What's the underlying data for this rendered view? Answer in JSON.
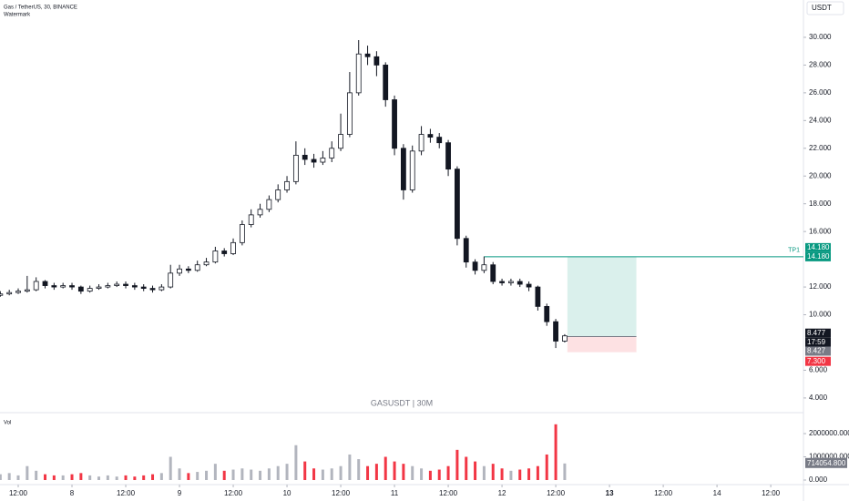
{
  "chart_data": {
    "type": "candlestick",
    "title": "Gas / TetherUS, 30, BINANCE",
    "subtitle": "Watermark",
    "watermark": "GASUSDT | 30M",
    "currency": "USDT",
    "volume_title": "Vol",
    "x": [
      8,
      10,
      12,
      14,
      16,
      18,
      20,
      22,
      24,
      26,
      28,
      30,
      32,
      34,
      36,
      38,
      40,
      42,
      44,
      46,
      48,
      50,
      52,
      54,
      56,
      58,
      60,
      62,
      64,
      66,
      68,
      70,
      72,
      74,
      76,
      78,
      80,
      82,
      84,
      86,
      88,
      90,
      92,
      94,
      96,
      98,
      100,
      102,
      104,
      106,
      108,
      110,
      112,
      114,
      116,
      118,
      120,
      122,
      124,
      126,
      128,
      130,
      132,
      134
    ],
    "open": [
      11.4,
      11.5,
      11.6,
      11.7,
      11.8,
      12.4,
      12.1,
      12.0,
      12.1,
      12.0,
      11.7,
      11.9,
      12.0,
      12.1,
      12.2,
      12.1,
      12.0,
      11.9,
      11.8,
      12.0,
      13.0,
      13.3,
      13.2,
      13.6,
      13.8,
      14.6,
      14.4,
      15.2,
      16.5,
      17.2,
      17.6,
      18.3,
      19.0,
      19.6,
      21.5,
      21.2,
      21.0,
      21.3,
      22.0,
      23.0,
      26.0,
      28.8,
      28.6,
      28.0,
      25.5,
      22.0,
      19.0,
      21.8,
      23.0,
      22.8,
      22.4,
      20.5,
      15.5,
      13.8,
      13.2,
      13.6,
      12.4,
      12.3,
      12.4,
      12.2,
      12.0,
      10.6,
      9.5,
      8.1
    ],
    "high": [
      11.7,
      11.8,
      11.9,
      12.8,
      12.7,
      12.5,
      12.3,
      12.3,
      12.3,
      12.1,
      12.1,
      12.2,
      12.3,
      12.4,
      12.4,
      12.3,
      12.2,
      12.1,
      12.2,
      13.6,
      13.6,
      13.5,
      13.9,
      14.1,
      14.9,
      14.8,
      15.5,
      16.8,
      17.6,
      18.0,
      18.6,
      19.4,
      20.0,
      22.5,
      22.0,
      21.6,
      21.8,
      22.5,
      24.5,
      27.5,
      29.8,
      29.4,
      29.0,
      28.2,
      25.8,
      22.3,
      22.2,
      23.6,
      23.4,
      23.1,
      22.6,
      20.7,
      15.7,
      14.0,
      14.2,
      13.8,
      12.6,
      12.6,
      12.6,
      12.4,
      12.1,
      10.8,
      9.7,
      8.6
    ],
    "low": [
      11.3,
      11.4,
      11.5,
      11.6,
      11.7,
      11.9,
      11.8,
      11.9,
      11.8,
      11.5,
      11.6,
      11.8,
      11.9,
      12.0,
      11.9,
      11.8,
      11.7,
      11.6,
      11.7,
      11.9,
      12.8,
      13.0,
      13.1,
      13.5,
      13.7,
      14.2,
      14.3,
      15.0,
      16.3,
      17.0,
      17.4,
      18.1,
      18.8,
      19.4,
      20.8,
      20.6,
      20.8,
      21.0,
      21.8,
      22.8,
      25.8,
      28.0,
      27.2,
      25.0,
      21.5,
      18.3,
      18.8,
      21.5,
      22.4,
      22.0,
      20.0,
      15.0,
      13.4,
      12.9,
      13.0,
      12.2,
      12.1,
      12.1,
      12.0,
      11.7,
      10.3,
      9.2,
      7.6,
      8.0
    ],
    "close": [
      11.5,
      11.6,
      11.7,
      11.8,
      12.4,
      12.1,
      12.0,
      12.1,
      12.0,
      11.7,
      11.9,
      12.0,
      12.1,
      12.2,
      12.1,
      12.0,
      11.9,
      11.8,
      12.0,
      13.0,
      13.3,
      13.2,
      13.6,
      13.8,
      14.6,
      14.4,
      15.2,
      16.5,
      17.2,
      17.6,
      18.3,
      19.0,
      19.6,
      21.5,
      21.2,
      21.0,
      21.3,
      22.0,
      23.0,
      26.0,
      28.8,
      28.6,
      28.0,
      25.5,
      22.0,
      19.0,
      21.8,
      23.0,
      22.8,
      22.4,
      20.5,
      15.5,
      13.8,
      13.2,
      13.6,
      12.4,
      12.3,
      12.4,
      12.2,
      12.0,
      10.6,
      9.5,
      8.1,
      8.477
    ],
    "volume": [
      250000,
      300000,
      200000,
      600000,
      400000,
      250000,
      200000,
      200000,
      250000,
      300000,
      200000,
      150000,
      200000,
      150000,
      200000,
      150000,
      200000,
      250000,
      300000,
      1000000,
      500000,
      300000,
      350000,
      400000,
      700000,
      400000,
      450000,
      500000,
      450000,
      400000,
      500000,
      600000,
      700000,
      1500000,
      800000,
      500000,
      450000,
      500000,
      600000,
      1100000,
      900000,
      600000,
      700000,
      1000000,
      800000,
      700000,
      600000,
      500000,
      400000,
      450000,
      600000,
      1300000,
      1000000,
      800000,
      600000,
      700000,
      500000,
      400000,
      450000,
      500000,
      600000,
      1100000,
      2400000,
      714054.8
    ],
    "last_volume_label": "714054.800",
    "countdown": "17:59",
    "up_color": "#ffffff",
    "down_color": "#131722",
    "wick_color": "#131722",
    "volume_up_color": "#b2b5be",
    "volume_down_color": "#f23645",
    "xlim": [
      7.93,
      187.3
    ],
    "xticks": [
      {
        "value": 12,
        "label": "12:00"
      },
      {
        "value": 24,
        "label": "8"
      },
      {
        "value": 36,
        "label": "12:00"
      },
      {
        "value": 48,
        "label": "9"
      },
      {
        "value": 60,
        "label": "12:00"
      },
      {
        "value": 72,
        "label": "10"
      },
      {
        "value": 84,
        "label": "12:00"
      },
      {
        "value": 96,
        "label": "11"
      },
      {
        "value": 108,
        "label": "12:00"
      },
      {
        "value": 120,
        "label": "12"
      },
      {
        "value": 132,
        "label": "12:00"
      },
      {
        "value": 144,
        "label": "13"
      },
      {
        "value": 156,
        "label": "12:00"
      },
      {
        "value": 168,
        "label": "14"
      },
      {
        "value": 180,
        "label": "12:00"
      }
    ],
    "bold_xtick": 11,
    "ylim": [
      3.14,
      32.69
    ],
    "yticks": [
      {
        "value": 4,
        "label": "4.000"
      },
      {
        "value": 6,
        "label": "6.000"
      },
      {
        "value": 10,
        "label": "10.000"
      },
      {
        "value": 12,
        "label": "12.000"
      },
      {
        "value": 16,
        "label": "16.000"
      },
      {
        "value": 18,
        "label": "18.000"
      },
      {
        "value": 20,
        "label": "20.000"
      },
      {
        "value": 22,
        "label": "22.000"
      },
      {
        "value": 24,
        "label": "24.000"
      },
      {
        "value": 26,
        "label": "26.000"
      },
      {
        "value": 28,
        "label": "28.000"
      },
      {
        "value": 30,
        "label": "30.000"
      }
    ],
    "vol_ylim": [
      -117600,
      2823500
    ],
    "vol_ticks": [
      {
        "value": 0,
        "label": "0.000"
      },
      {
        "value": 1000000,
        "label": "1000000.000"
      },
      {
        "value": 2000000,
        "label": "2000000.000"
      }
    ],
    "position": {
      "entry": 8.427,
      "target": {
        "value": 14.18,
        "label": "14.180"
      },
      "stop": {
        "value": 7.3,
        "label": "7.300"
      },
      "target_name": "TP1",
      "x_range": [
        134.6,
        150
      ],
      "line_start": 116
    }
  }
}
